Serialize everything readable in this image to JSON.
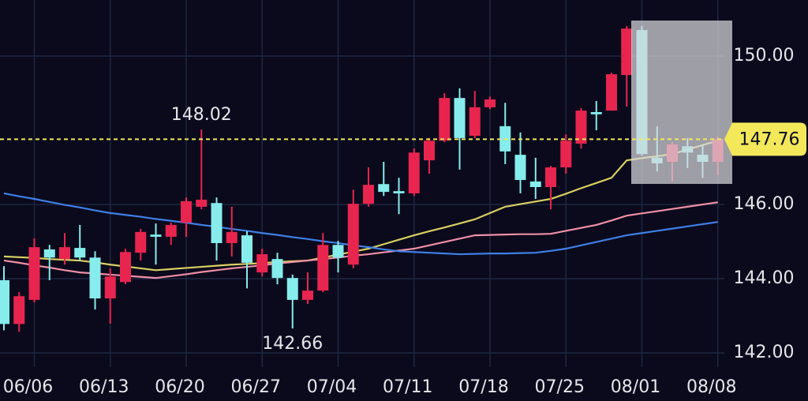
{
  "chart_data": {
    "type": "candlestick",
    "categories": [
      null,
      null,
      "06/06",
      null,
      null,
      null,
      null,
      "06/13",
      null,
      null,
      null,
      null,
      "06/20",
      null,
      null,
      null,
      null,
      "06/27",
      null,
      null,
      null,
      null,
      "07/04",
      null,
      null,
      null,
      null,
      "07/11",
      null,
      null,
      null,
      null,
      "07/18",
      null,
      null,
      null,
      null,
      "07/25",
      null,
      null,
      null,
      null,
      "08/01",
      null,
      null,
      null,
      null,
      "08/08"
    ],
    "open": [
      143.96,
      142.78,
      143.43,
      144.79,
      144.53,
      144.83,
      144.57,
      143.47,
      143.91,
      144.7,
      145.19,
      145.13,
      145.51,
      145.94,
      146.04,
      144.96,
      145.17,
      144.17,
      144.53,
      144.02,
      143.43,
      143.68,
      144.91,
      144.38,
      146.02,
      146.55,
      146.36,
      146.3,
      147.19,
      147.72,
      148.87,
      147.85,
      148.62,
      148.11,
      147.34,
      146.62,
      146.47,
      147.0,
      147.64,
      148.49,
      148.53,
      149.49,
      150.7,
      147.26,
      147.15,
      147.57,
      147.34,
      147.15
    ],
    "high": [
      144.34,
      143.64,
      145.09,
      144.91,
      145.23,
      145.45,
      144.74,
      144.28,
      144.81,
      145.34,
      145.49,
      145.51,
      146.19,
      148.02,
      146.19,
      145.94,
      145.28,
      144.81,
      144.7,
      144.11,
      144.17,
      145.23,
      145.02,
      146.4,
      147.0,
      147.15,
      146.72,
      147.51,
      147.79,
      149.0,
      149.13,
      149.06,
      148.91,
      148.74,
      147.94,
      147.26,
      147.04,
      147.89,
      148.6,
      148.79,
      149.55,
      150.81,
      150.81,
      148.11,
      147.68,
      147.79,
      147.62,
      147.83
    ],
    "low": [
      142.61,
      142.57,
      143.36,
      143.96,
      144.38,
      144.49,
      143.17,
      142.79,
      143.85,
      144.49,
      144.38,
      144.91,
      145.13,
      145.87,
      144.49,
      144.6,
      143.74,
      144.06,
      143.85,
      142.66,
      143.32,
      143.64,
      144.17,
      144.28,
      145.94,
      146.23,
      145.74,
      146.23,
      146.83,
      147.68,
      146.94,
      147.79,
      148.57,
      147.09,
      146.3,
      146.15,
      145.87,
      146.83,
      147.51,
      148.0,
      148.53,
      148.64,
      147.32,
      146.89,
      146.62,
      146.98,
      146.72,
      146.79
    ],
    "close": [
      142.78,
      143.53,
      144.85,
      144.57,
      144.85,
      144.57,
      143.47,
      144.06,
      144.72,
      145.26,
      145.13,
      145.45,
      146.09,
      146.13,
      144.96,
      145.26,
      144.43,
      144.66,
      144.02,
      143.43,
      143.68,
      144.91,
      144.57,
      146.02,
      146.53,
      146.34,
      146.3,
      147.4,
      147.72,
      148.87,
      147.79,
      148.62,
      148.83,
      147.43,
      146.66,
      146.47,
      147.0,
      147.72,
      148.53,
      148.43,
      149.51,
      150.74,
      147.36,
      147.11,
      147.62,
      147.4,
      147.15,
      147.76
    ],
    "up_color": "#e8254f",
    "down_color": "#86ecec",
    "moving_averages": [
      {
        "color": "#d9cf62",
        "values": [
          144.6,
          144.58,
          144.56,
          144.53,
          144.51,
          144.49,
          144.44,
          144.38,
          144.33,
          144.28,
          144.23,
          144.26,
          144.29,
          144.32,
          144.35,
          144.38,
          144.4,
          144.42,
          144.45,
          144.47,
          144.49,
          144.57,
          144.65,
          144.73,
          144.81,
          144.93,
          145.05,
          145.17,
          145.28,
          145.38,
          145.49,
          145.6,
          145.77,
          145.94,
          146.01,
          146.08,
          146.15,
          146.29,
          146.44,
          146.58,
          146.72,
          147.19,
          147.25,
          147.3,
          147.36,
          147.48,
          147.6,
          147.72
        ]
      },
      {
        "color": "#ef8fa6",
        "values": [
          144.49,
          144.43,
          144.36,
          144.3,
          144.23,
          144.17,
          144.14,
          144.11,
          144.08,
          144.05,
          144.02,
          144.07,
          144.12,
          144.18,
          144.23,
          144.28,
          144.32,
          144.36,
          144.41,
          144.45,
          144.49,
          144.53,
          144.57,
          144.62,
          144.66,
          144.71,
          144.76,
          144.81,
          144.9,
          144.99,
          145.08,
          145.17,
          145.18,
          145.19,
          145.2,
          145.2,
          145.21,
          145.29,
          145.37,
          145.45,
          145.57,
          145.7,
          145.76,
          145.82,
          145.88,
          145.94,
          146.0,
          146.06
        ]
      },
      {
        "color": "#3f7fe6",
        "values": [
          146.3,
          146.22,
          146.15,
          146.07,
          145.99,
          145.92,
          145.84,
          145.77,
          145.72,
          145.67,
          145.61,
          145.56,
          145.51,
          145.45,
          145.4,
          145.34,
          145.29,
          145.23,
          145.18,
          145.12,
          145.07,
          145.01,
          144.96,
          144.9,
          144.85,
          144.79,
          144.74,
          144.72,
          144.7,
          144.68,
          144.66,
          144.67,
          144.68,
          144.68,
          144.69,
          144.7,
          144.75,
          144.81,
          144.9,
          144.99,
          145.08,
          145.17,
          145.23,
          145.29,
          145.35,
          145.41,
          145.47,
          145.53
        ]
      }
    ],
    "ylim": [
      141.62,
      151.51
    ],
    "yticks": [
      {
        "value": 142,
        "label": "142.00"
      },
      {
        "value": 144,
        "label": "144.00"
      },
      {
        "value": 146,
        "label": "146.00"
      },
      {
        "value": 150,
        "label": "150.00"
      }
    ],
    "grid": true,
    "high_label": 148.02,
    "low_label": 142.66,
    "last_price": 147.76,
    "last_price_color": "#f2e85a"
  }
}
